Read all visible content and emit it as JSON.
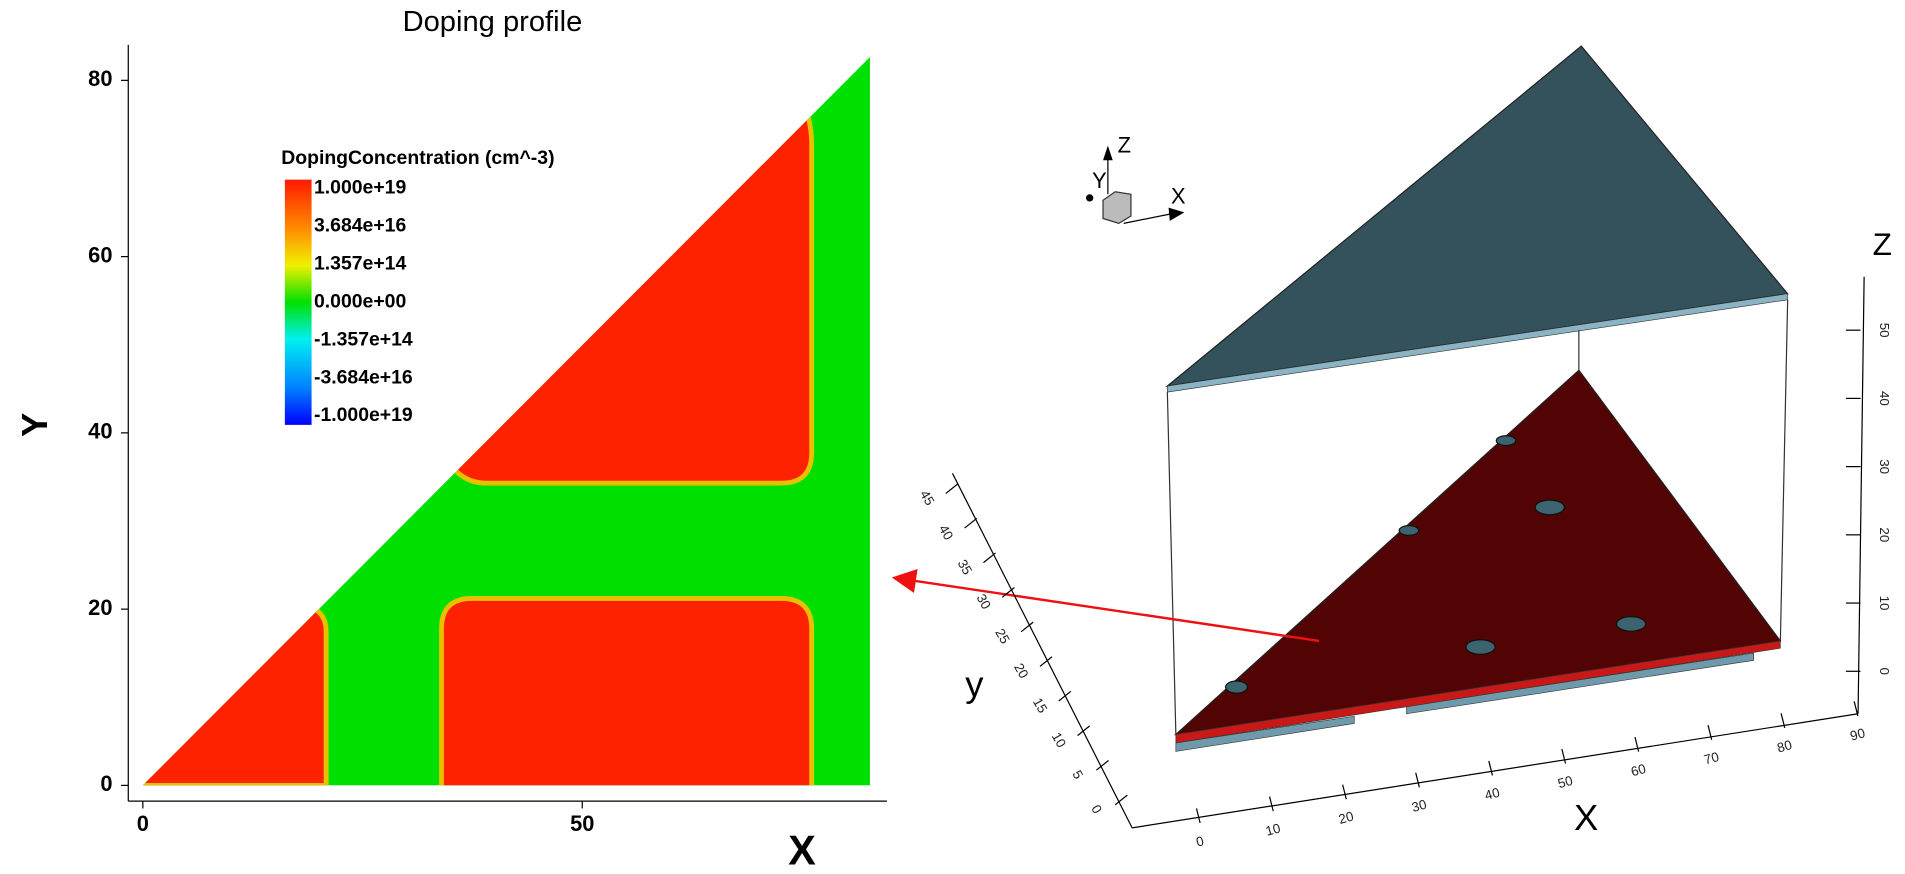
{
  "left_panel": {
    "title": "Doping profile",
    "x_label": "X",
    "y_label": "Y",
    "x_ticks": [
      0,
      50
    ],
    "y_ticks": [
      0,
      20,
      40,
      60,
      80
    ],
    "legend": {
      "title": "DopingConcentration (cm^-3)",
      "labels": [
        "1.000e+19",
        "3.684e+16",
        "1.357e+14",
        "0.000e+00",
        "-1.357e+14",
        "-3.684e+16",
        "-1.000e+19"
      ]
    }
  },
  "right_panel": {
    "orientation": {
      "z": "Z",
      "y": "Y",
      "x": "X"
    },
    "x_label": "X",
    "y_label": "y",
    "z_label": "Z",
    "x_ticks": [
      0,
      10,
      20,
      30,
      40,
      50,
      60,
      70,
      80,
      90
    ],
    "y_ticks": [
      0,
      5,
      10,
      15,
      20,
      25,
      30,
      35,
      40,
      45
    ],
    "z_ticks": [
      0,
      10,
      20,
      30,
      40,
      50
    ]
  }
}
